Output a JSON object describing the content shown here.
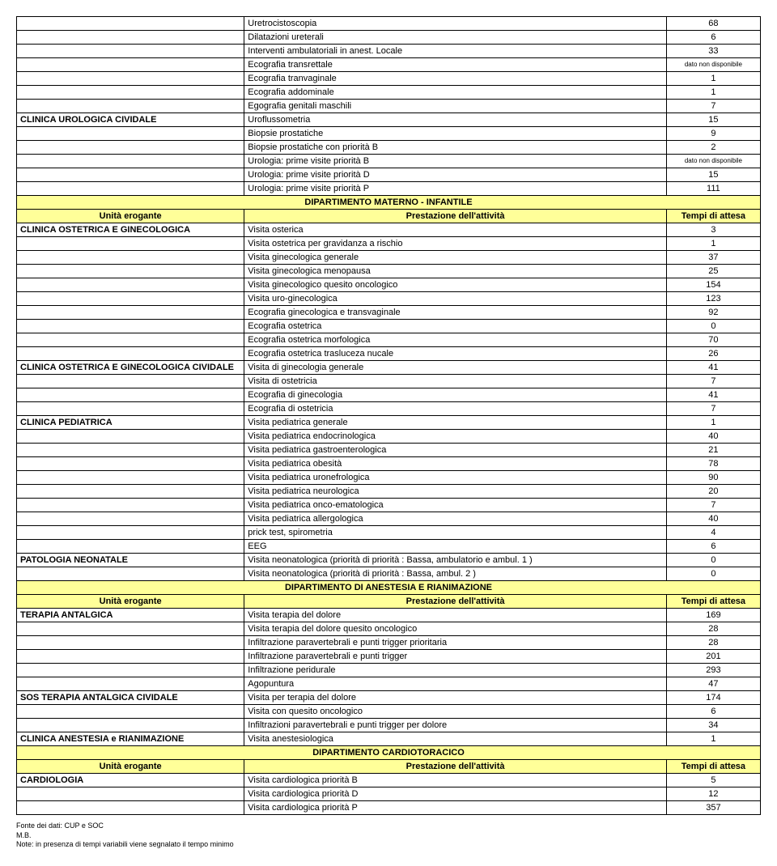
{
  "sections": [
    {
      "rows": [
        {
          "unit": "",
          "prest": "Uretrocistoscopia",
          "val": "68"
        },
        {
          "unit": "",
          "prest": "Dilatazioni ureterali",
          "val": "6"
        },
        {
          "unit": "",
          "prest": "Interventi ambulatoriali in anest. Locale",
          "val": "33"
        },
        {
          "unit": "",
          "prest": "Ecografia transrettale",
          "val": "dato non disponibile",
          "small": true
        },
        {
          "unit": "",
          "prest": "Ecografia tranvaginale",
          "val": "1"
        },
        {
          "unit": "",
          "prest": "Ecografia addominale",
          "val": "1"
        },
        {
          "unit": "",
          "prest": "Egografia genitali maschili",
          "val": "7"
        },
        {
          "unit": "CLINICA UROLOGICA CIVIDALE",
          "prest": "Uroflussometria",
          "val": "15"
        },
        {
          "unit": "",
          "prest": "Biopsie prostatiche",
          "val": "9"
        },
        {
          "unit": "",
          "prest": "Biopsie prostatiche con priorità B",
          "val": "2"
        },
        {
          "unit": "",
          "prest": "Urologia: prime visite priorità B",
          "val": "dato non disponibile",
          "small": true
        },
        {
          "unit": "",
          "prest": "Urologia: prime visite priorità D",
          "val": "15"
        },
        {
          "unit": "",
          "prest": "Urologia: prime visite priorità P",
          "val": "111"
        }
      ]
    },
    {
      "dept": "DIPARTIMENTO MATERNO - INFANTILE",
      "headers": {
        "unit": "Unità erogante",
        "prest": "Prestazione dell'attività",
        "tempo": "Tempi di attesa"
      },
      "rows": [
        {
          "unit": "CLINICA OSTETRICA E GINECOLOGICA",
          "prest": "Visita osterica",
          "val": "3"
        },
        {
          "unit": "",
          "prest": "Visita ostetrica per gravidanza a rischio",
          "val": "1"
        },
        {
          "unit": "",
          "prest": "Visita ginecologica generale",
          "val": "37"
        },
        {
          "unit": "",
          "prest": "Visita ginecologica menopausa",
          "val": "25"
        },
        {
          "unit": "",
          "prest": "Visita ginecologico quesito oncologico",
          "val": "154"
        },
        {
          "unit": "",
          "prest": "Visita uro-ginecologica",
          "val": "123"
        },
        {
          "unit": "",
          "prest": "Ecografia ginecologica e transvaginale",
          "val": "92"
        },
        {
          "unit": "",
          "prest": "Ecografia ostetrica",
          "val": "0"
        },
        {
          "unit": "",
          "prest": "Ecografia ostetrica morfologica",
          "val": "70"
        },
        {
          "unit": "",
          "prest": "Ecografia ostetrica trasluceza nucale",
          "val": "26"
        },
        {
          "unit": "CLINICA OSTETRICA E GINECOLOGICA CIVIDALE",
          "prest": "Visita di ginecologia generale",
          "val": "41"
        },
        {
          "unit": "",
          "prest": "Visita di ostetricia",
          "val": "7"
        },
        {
          "unit": "",
          "prest": "Ecografia di ginecologia",
          "val": "41"
        },
        {
          "unit": "",
          "prest": "Ecografia di ostetricia",
          "val": "7"
        },
        {
          "unit": "CLINICA PEDIATRICA",
          "prest": "Visita pediatrica generale",
          "val": "1"
        },
        {
          "unit": "",
          "prest": "Visita pediatrica endocrinologica",
          "val": "40"
        },
        {
          "unit": "",
          "prest": "Visita pediatrica gastroenterologica",
          "val": "21"
        },
        {
          "unit": "",
          "prest": "Visita pediatrica obesità",
          "val": "78"
        },
        {
          "unit": "",
          "prest": "Visita pediatrica uronefrologica",
          "val": "90"
        },
        {
          "unit": "",
          "prest": "Visita pediatrica neurologica",
          "val": "20"
        },
        {
          "unit": "",
          "prest": "Visita pediatrica onco-ematologica",
          "val": "7"
        },
        {
          "unit": "",
          "prest": "Visita pediatrica allergologica",
          "val": "40"
        },
        {
          "unit": "",
          "prest": "prick test, spirometria",
          "val": "4"
        },
        {
          "unit": "",
          "prest": "EEG",
          "val": "6"
        },
        {
          "unit": "PATOLOGIA NEONATALE",
          "prest": "Visita neonatologica (priorità di priorità : Bassa, ambulatorio e ambul. 1 )",
          "val": "0"
        },
        {
          "unit": "",
          "prest": "Visita neonatologica (priorità di priorità : Bassa, ambul. 2 )",
          "val": "0"
        }
      ]
    },
    {
      "dept": "DIPARTIMENTO DI ANESTESIA E RIANIMAZIONE",
      "headers": {
        "unit": "Unità erogante",
        "prest": "Prestazione dell'attività",
        "tempo": "Tempi di attesa"
      },
      "rows": [
        {
          "unit": "TERAPIA ANTALGICA",
          "prest": "Visita terapia del dolore",
          "val": "169"
        },
        {
          "unit": "",
          "prest": "Visita terapia del dolore quesito oncologico",
          "val": "28"
        },
        {
          "unit": "",
          "prest": "Infiltrazione paravertebrali e punti trigger prioritaria",
          "val": "28"
        },
        {
          "unit": "",
          "prest": "Infiltrazione paravertebrali e punti trigger",
          "val": "201"
        },
        {
          "unit": "",
          "prest": "Infiltrazione peridurale",
          "val": "293"
        },
        {
          "unit": "",
          "prest": "Agopuntura",
          "val": "47"
        },
        {
          "unit": "SOS TERAPIA ANTALGICA CIVIDALE",
          "prest": "Visita per terapia del dolore",
          "val": "174"
        },
        {
          "unit": "",
          "prest": "Visita con quesito oncologico",
          "val": "6"
        },
        {
          "unit": "",
          "prest": "Infiltrazioni paravertebrali e punti trigger per dolore",
          "val": "34"
        },
        {
          "unit": "CLINICA ANESTESIA e RIANIMAZIONE",
          "prest": "Visita anestesiologica",
          "val": "1"
        }
      ]
    },
    {
      "dept": "DIPARTIMENTO CARDIOTORACICO",
      "headers": {
        "unit": "Unità erogante",
        "prest": "Prestazione dell'attività",
        "tempo": "Tempi di attesa"
      },
      "rows": [
        {
          "unit": "CARDIOLOGIA",
          "prest": "Visita cardiologica priorità B",
          "val": "5"
        },
        {
          "unit": "",
          "prest": "Visita cardiologica priorità D",
          "val": "12"
        },
        {
          "unit": "",
          "prest": "Visita cardiologica priorità P",
          "val": "357"
        }
      ]
    }
  ],
  "footer": {
    "line1": "Fonte dei dati: CUP e SOC",
    "line2": "M.B.",
    "line3": "Note: in presenza di tempi variabili viene segnalato il tempo minimo"
  }
}
